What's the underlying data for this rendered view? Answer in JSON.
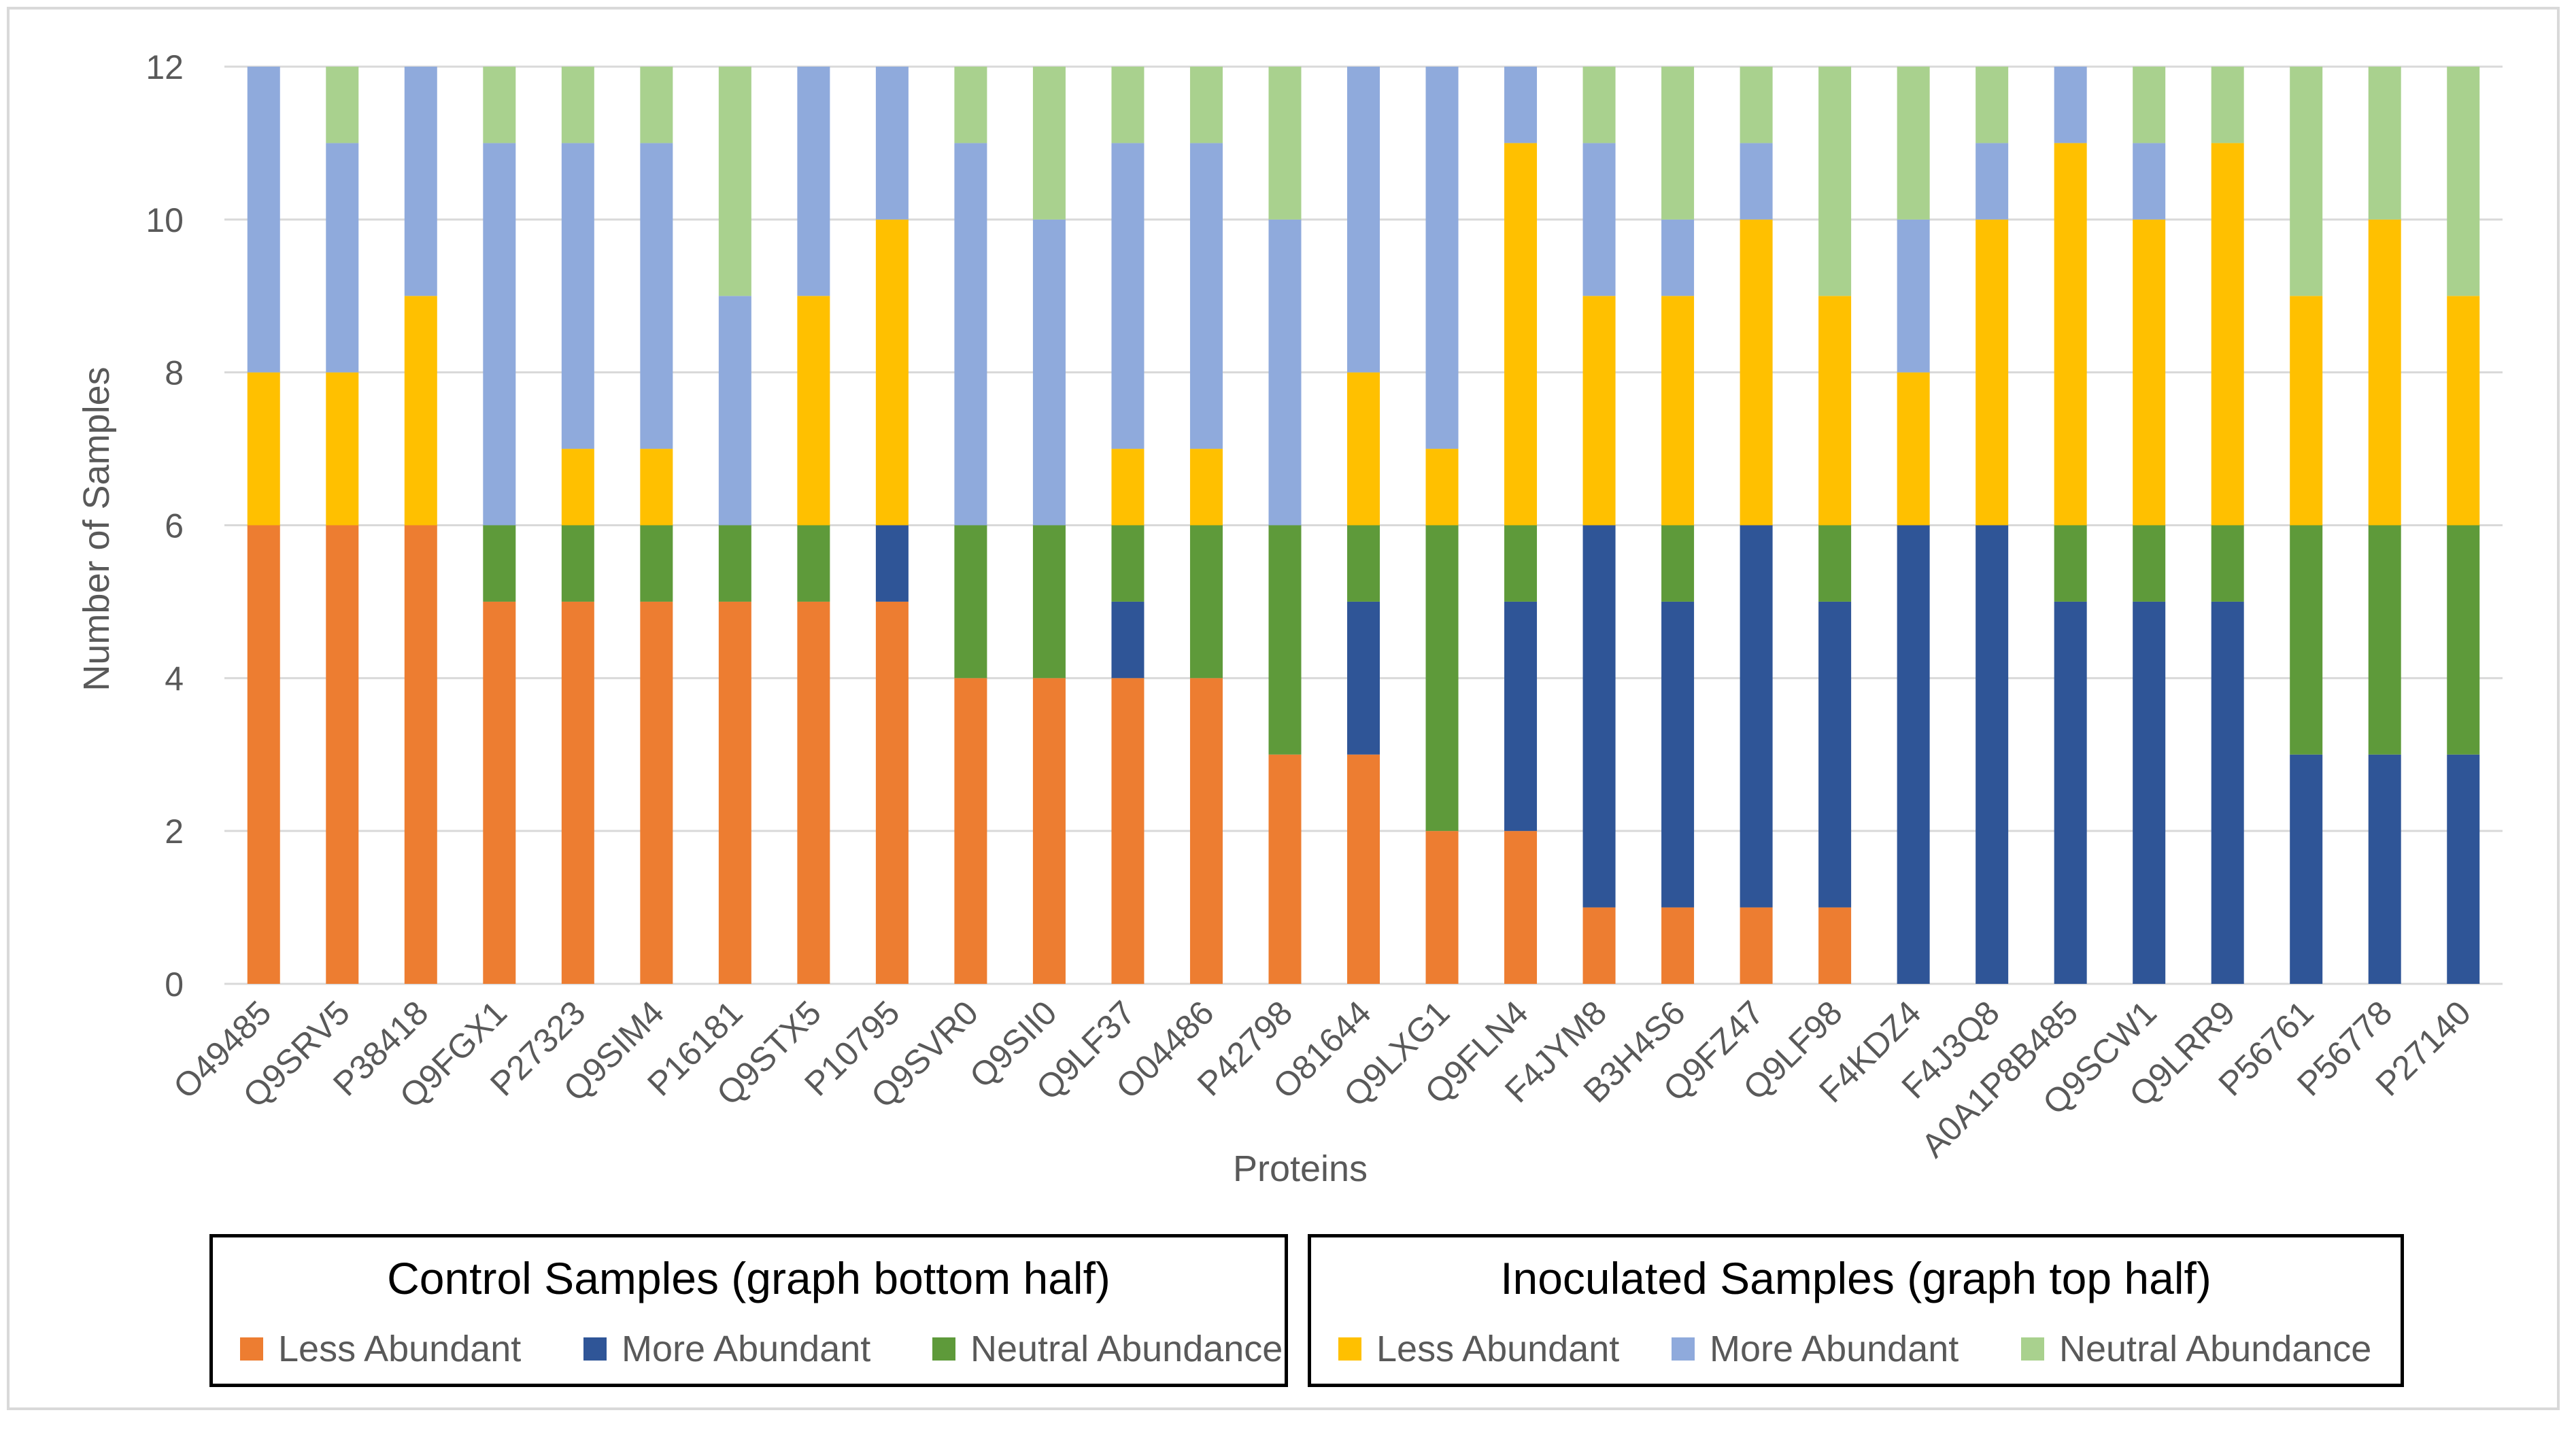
{
  "chart_data": {
    "type": "bar",
    "stacked": true,
    "xlabel": "Proteins",
    "ylabel": "Number of Samples",
    "ylim": [
      0,
      12
    ],
    "yticks": [
      "0",
      "2",
      "4",
      "6",
      "8",
      "10",
      "12"
    ],
    "grid": true,
    "categories": [
      "O49485",
      "Q9SRV5",
      "P38418",
      "Q9FGX1",
      "P27323",
      "Q9SIM4",
      "P16181",
      "Q9STX5",
      "P10795",
      "Q9SVR0",
      "Q9SII0",
      "Q9LF37",
      "O04486",
      "P42798",
      "O81644",
      "Q9LXG1",
      "Q9FLN4",
      "F4JYM8",
      "B3H4S6",
      "Q9FZ47",
      "Q9LF98",
      "F4KDZ4",
      "F4J3Q8",
      "A0A1P8B485",
      "Q9SCW1",
      "Q9LRR9",
      "P56761",
      "P56778",
      "P27140"
    ],
    "series": [
      {
        "group": "control",
        "name": "Less Abundant",
        "color": "#ED7D31",
        "values": [
          6,
          6,
          6,
          5,
          5,
          5,
          5,
          5,
          5,
          4,
          4,
          4,
          4,
          3,
          3,
          2,
          2,
          1,
          1,
          1,
          1,
          0,
          0,
          0,
          0,
          0,
          0,
          0,
          0
        ]
      },
      {
        "group": "control",
        "name": "More Abundant",
        "color": "#2F5597",
        "values": [
          0,
          0,
          0,
          0,
          0,
          0,
          0,
          0,
          1,
          0,
          0,
          1,
          0,
          0,
          2,
          0,
          3,
          5,
          4,
          5,
          4,
          6,
          6,
          5,
          5,
          5,
          3,
          3,
          3
        ]
      },
      {
        "group": "control",
        "name": "Neutral Abundance",
        "color": "#5E9A3A",
        "values": [
          0,
          0,
          0,
          1,
          1,
          1,
          1,
          1,
          0,
          2,
          2,
          1,
          2,
          3,
          1,
          4,
          1,
          0,
          1,
          0,
          1,
          0,
          0,
          1,
          1,
          1,
          3,
          3,
          3
        ]
      },
      {
        "group": "inoculated",
        "name": "Less Abundant",
        "color": "#FFC000",
        "values": [
          2,
          2,
          3,
          0,
          1,
          1,
          0,
          3,
          4,
          0,
          0,
          1,
          1,
          0,
          2,
          1,
          5,
          3,
          3,
          4,
          3,
          2,
          4,
          5,
          4,
          5,
          3,
          4,
          3
        ]
      },
      {
        "group": "inoculated",
        "name": "More Abundant",
        "color": "#8FAADC",
        "values": [
          4,
          3,
          3,
          5,
          4,
          4,
          3,
          3,
          2,
          5,
          4,
          4,
          4,
          4,
          4,
          5,
          1,
          2,
          1,
          1,
          0,
          2,
          1,
          1,
          1,
          0,
          0,
          0,
          0
        ]
      },
      {
        "group": "inoculated",
        "name": "Neutral Abundance",
        "color": "#A9D18E",
        "values": [
          0,
          1,
          0,
          1,
          1,
          1,
          3,
          0,
          0,
          1,
          2,
          1,
          1,
          2,
          0,
          0,
          0,
          1,
          2,
          1,
          3,
          2,
          1,
          0,
          1,
          1,
          3,
          2,
          3
        ]
      }
    ]
  },
  "legend": {
    "control": {
      "title": "Control Samples (graph bottom half)",
      "items": [
        {
          "label": "Less Abundant",
          "color": "#ED7D31"
        },
        {
          "label": "More Abundant",
          "color": "#2F5597"
        },
        {
          "label": "Neutral Abundance",
          "color": "#5E9A3A"
        }
      ]
    },
    "inoculated": {
      "title": "Inoculated Samples (graph top half)",
      "items": [
        {
          "label": "Less Abundant",
          "color": "#FFC000"
        },
        {
          "label": "More Abundant",
          "color": "#8FAADC"
        },
        {
          "label": "Neutral Abundance",
          "color": "#A9D18E"
        }
      ]
    }
  }
}
